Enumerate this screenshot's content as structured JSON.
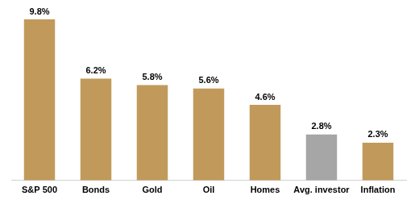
{
  "chart_data": {
    "type": "bar",
    "categories": [
      "S&P 500",
      "Bonds",
      "Gold",
      "Oil",
      "Homes",
      "Avg. investor",
      "Inflation"
    ],
    "values": [
      9.8,
      6.2,
      5.8,
      5.6,
      4.6,
      2.8,
      2.3
    ],
    "value_labels": [
      "9.8%",
      "6.2%",
      "5.8%",
      "5.6%",
      "4.6%",
      "2.8%",
      "2.3%"
    ],
    "colors": [
      "#c19a5b",
      "#c19a5b",
      "#c19a5b",
      "#c19a5b",
      "#c19a5b",
      "#a6a6a6",
      "#c19a5b"
    ],
    "ylim": [
      0,
      10
    ],
    "grid": false,
    "data_labels": true,
    "tick_labels": "x"
  }
}
